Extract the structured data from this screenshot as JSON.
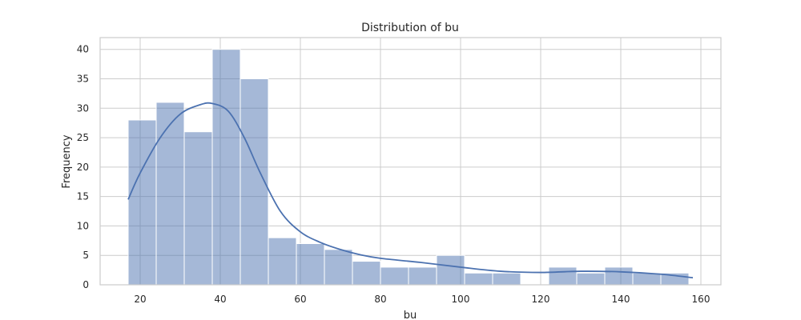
{
  "chart_data": {
    "type": "bar",
    "title": "Distribution of bu",
    "xlabel": "bu",
    "ylabel": "Frequency",
    "xlim": [
      10,
      165
    ],
    "ylim": [
      0,
      42
    ],
    "xticks": [
      20,
      40,
      60,
      80,
      100,
      120,
      140,
      160
    ],
    "yticks": [
      0,
      5,
      10,
      15,
      20,
      25,
      30,
      35,
      40
    ],
    "grid": true,
    "legend": "none",
    "colors": {
      "bar": "#4c72b0",
      "kde": "#4c72b0",
      "grid": "#cccccc"
    },
    "bins": {
      "edges": [
        17,
        24,
        31,
        38,
        45,
        52,
        59,
        66,
        73,
        80,
        87,
        94,
        101,
        108,
        115,
        122,
        129,
        136,
        143,
        150,
        157
      ],
      "counts": [
        28,
        31,
        26,
        40,
        35,
        8,
        7,
        6,
        4,
        3,
        3,
        5,
        2,
        2,
        0,
        3,
        2,
        3,
        2,
        2
      ]
    },
    "kde": {
      "x": [
        17,
        20,
        25,
        30,
        35,
        38,
        42,
        46,
        50,
        55,
        60,
        65,
        70,
        75,
        80,
        90,
        100,
        110,
        120,
        130,
        140,
        150,
        158
      ],
      "y": [
        14.5,
        19,
        25,
        29,
        30.6,
        30.8,
        29.5,
        25,
        19,
        12.5,
        9,
        7.2,
        6,
        5.1,
        4.5,
        3.8,
        3,
        2.3,
        2.1,
        2.3,
        2.2,
        1.8,
        1.2
      ]
    }
  }
}
